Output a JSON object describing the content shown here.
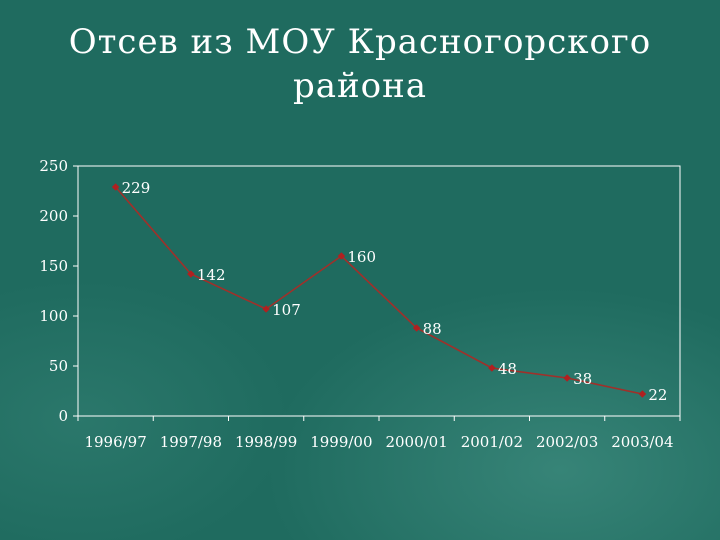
{
  "title": {
    "line1": "Отсев из МОУ Красногорского",
    "line2": "района"
  },
  "colors": {
    "background": "#1f6b5f",
    "line": "#a0302a",
    "marker": "#b02020",
    "text": "#ffffff",
    "axis": "#ffffff"
  },
  "chart_data": {
    "type": "line",
    "title": "Отсев из МОУ Красногорского района",
    "xlabel": "",
    "ylabel": "",
    "categories": [
      "1996/97",
      "1997/98",
      "1998/99",
      "1999/00",
      "2000/01",
      "2001/02",
      "2002/03",
      "2003/04"
    ],
    "series": [
      {
        "values": [
          229,
          142,
          107,
          160,
          88,
          48,
          38,
          22
        ]
      }
    ],
    "data_labels": [
      "229",
      "142",
      "107",
      "160",
      "88",
      "48",
      "38",
      "22"
    ],
    "ylim": [
      0,
      250
    ],
    "yticks": [
      "0",
      "50",
      "100",
      "150",
      "200",
      "250"
    ],
    "grid": false,
    "legend": "none"
  }
}
